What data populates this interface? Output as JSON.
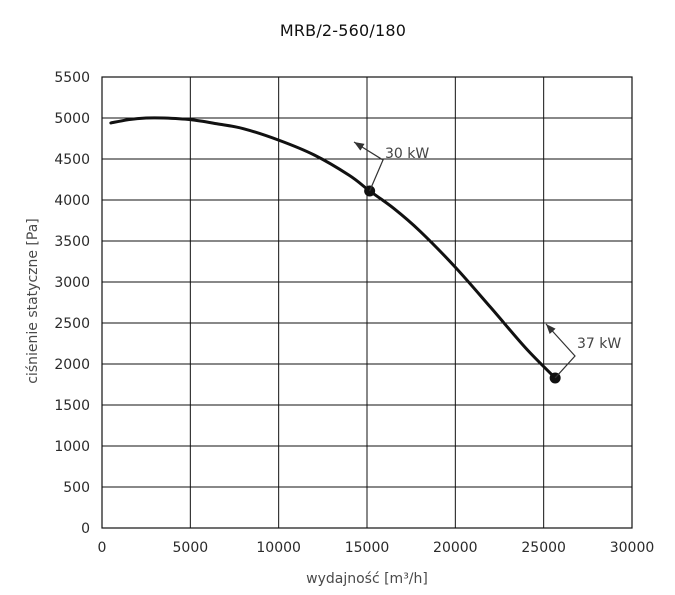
{
  "chart_data": {
    "type": "line",
    "title": "MRB/2-560/180",
    "xlabel": "wydajność [m³/h]",
    "ylabel": "ciśnienie statyczne [Pa]",
    "xlim": [
      0,
      30000
    ],
    "ylim": [
      0,
      5500
    ],
    "x_ticks": [
      0,
      5000,
      10000,
      15000,
      20000,
      25000,
      30000
    ],
    "y_ticks": [
      0,
      500,
      1000,
      1500,
      2000,
      2500,
      3000,
      3500,
      4000,
      4500,
      5000,
      5500
    ],
    "x_tick_labels": [
      "0",
      "5000",
      "10000",
      "15000",
      "20000",
      "25000",
      "30000"
    ],
    "y_tick_labels": [
      "0",
      "500",
      "1000",
      "1500",
      "2000",
      "2500",
      "3000",
      "3500",
      "4000",
      "4500",
      "5000",
      "5500"
    ],
    "grid": true,
    "series": [
      {
        "x": [
          500,
          1500,
          2500,
          3500,
          5000,
          6500,
          8000,
          10000,
          12000,
          14000,
          15150,
          16500,
          18000,
          20000,
          22000,
          24000,
          25650
        ],
        "y": [
          4940,
          4980,
          5000,
          5000,
          4980,
          4930,
          4870,
          4730,
          4550,
          4300,
          4110,
          3900,
          3620,
          3180,
          2690,
          2190,
          1830
        ],
        "color": "#111111"
      }
    ],
    "annotations": [
      {
        "text": "30 kW",
        "x": 15150,
        "y": 4110
      },
      {
        "text": "37 kW",
        "x": 25650,
        "y": 1830
      }
    ]
  }
}
